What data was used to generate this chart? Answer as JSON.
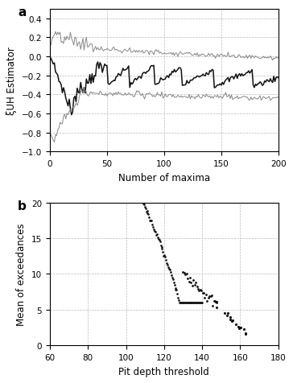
{
  "panel_a": {
    "label": "a",
    "xlabel": "Number of maxima",
    "ylabel": "ξUH Estimator",
    "xlim": [
      0,
      200
    ],
    "ylim": [
      -1.0,
      0.5
    ],
    "xticks": [
      0,
      50,
      100,
      150,
      200
    ],
    "yticks": [
      -1.0,
      -0.8,
      -0.6,
      -0.4,
      -0.2,
      0.0,
      0.2,
      0.4
    ],
    "grid_color": "#aaaaaa",
    "line_color_main": "#111111",
    "line_color_band": "#888888"
  },
  "panel_b": {
    "label": "b",
    "xlabel": "Pit depth threshold",
    "ylabel": "Mean of exceedances",
    "xlim": [
      60,
      180
    ],
    "ylim": [
      0,
      20
    ],
    "xticks": [
      60,
      80,
      100,
      120,
      140,
      160,
      180
    ],
    "yticks": [
      0,
      5,
      10,
      15,
      20
    ],
    "grid_color": "#aaaaaa",
    "dot_color": "#111111"
  }
}
